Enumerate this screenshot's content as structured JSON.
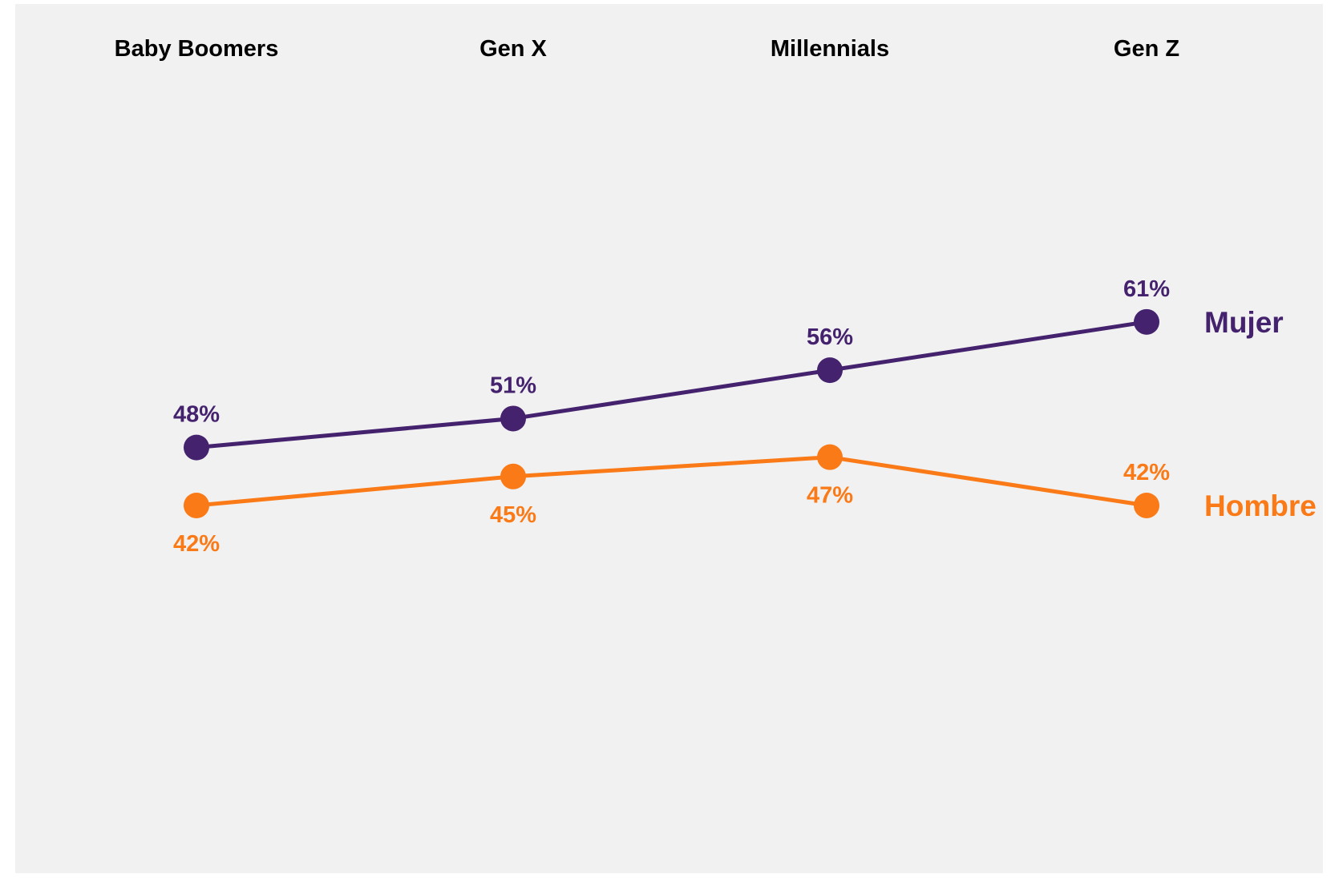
{
  "chart_data": {
    "type": "line",
    "categories": [
      "Baby Boomers",
      "Gen X",
      "Millennials",
      "Gen Z"
    ],
    "series": [
      {
        "name": "Mujer",
        "color": "#44226e",
        "values": [
          48,
          51,
          56,
          61
        ],
        "labels": [
          "48%",
          "51%",
          "56%",
          "61%"
        ]
      },
      {
        "name": "Hombre",
        "color": "#fa7a17",
        "values": [
          42,
          45,
          47,
          42
        ],
        "labels": [
          "42%",
          "45%",
          "47%",
          "42%"
        ]
      }
    ],
    "ylim": [
      0,
      100
    ],
    "grid": false,
    "legend": "right, at line ends",
    "background": "#f1f1f1"
  }
}
